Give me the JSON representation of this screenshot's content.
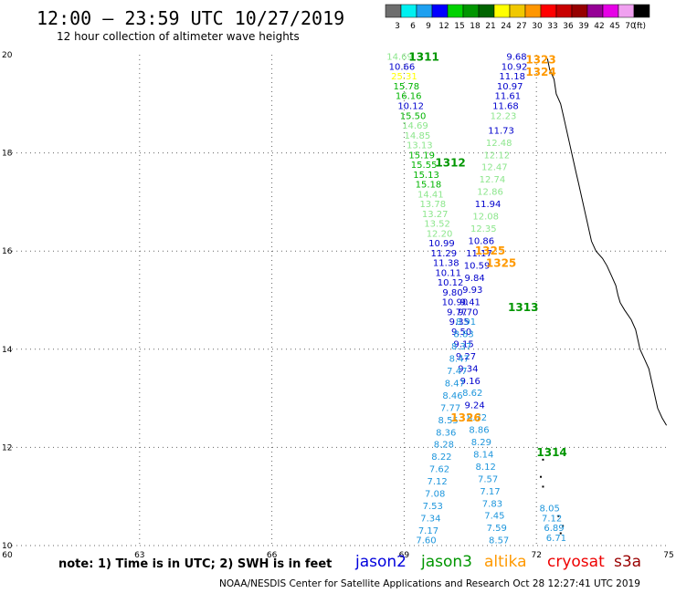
{
  "header": {
    "title": "12:00 – 23:59 UTC 10/27/2019",
    "subtitle": "12 hour collection of altimeter wave heights"
  },
  "legend": {
    "unit_label": "(ft)",
    "bins": [
      {
        "label": "3",
        "color": "#6e6e6e"
      },
      {
        "label": "6",
        "color": "#00f0f0"
      },
      {
        "label": "9",
        "color": "#1ea0f0"
      },
      {
        "label": "12",
        "color": "#0000ff"
      },
      {
        "label": "15",
        "color": "#00d200"
      },
      {
        "label": "18",
        "color": "#009600"
      },
      {
        "label": "21",
        "color": "#006400"
      },
      {
        "label": "24",
        "color": "#ffff00"
      },
      {
        "label": "27",
        "color": "#f0c800"
      },
      {
        "label": "30",
        "color": "#ff9600"
      },
      {
        "label": "33",
        "color": "#ff0000"
      },
      {
        "label": "36",
        "color": "#c80000"
      },
      {
        "label": "39",
        "color": "#960000"
      },
      {
        "label": "42",
        "color": "#960096"
      },
      {
        "label": "45",
        "color": "#e600e6"
      },
      {
        "label": "70",
        "color": "#f0a0f0"
      },
      {
        "label": "",
        "color": "#000000"
      }
    ]
  },
  "footer": {
    "note": "note:  1) Time is in UTC;  2) SWH is in feet",
    "credit": "NOAA/NESDIS Center for Satellite Applications and Research     Oct 28 12:27:41 UTC 2019",
    "satellites": [
      {
        "name": "jason2",
        "color": "#0000dd"
      },
      {
        "name": "jason3",
        "color": "#009600"
      },
      {
        "name": "altika",
        "color": "#ff9900"
      },
      {
        "name": "cryosat",
        "color": "#ee0000"
      },
      {
        "name": "s3a",
        "color": "#990000"
      }
    ]
  },
  "chart_data": {
    "type": "scatter",
    "title": "12:00 – 23:59 UTC 10/27/2019",
    "subtitle": "12 hour collection of altimeter wave heights",
    "xlim": [
      60,
      75
    ],
    "ylim": [
      10,
      20
    ],
    "xticks": [
      60,
      63,
      66,
      69,
      72,
      75
    ],
    "yticks": [
      10,
      12,
      14,
      16,
      18,
      20
    ],
    "grid": true,
    "pass_labels": [
      {
        "text": "1311",
        "x": 69.45,
        "y": 19.95,
        "color": "#009600"
      },
      {
        "text": "1312",
        "x": 70.05,
        "y": 17.8,
        "color": "#009600"
      },
      {
        "text": "1313",
        "x": 71.7,
        "y": 14.85,
        "color": "#009600"
      },
      {
        "text": "1314",
        "x": 72.35,
        "y": 11.9,
        "color": "#009600"
      },
      {
        "text": "1323",
        "x": 72.1,
        "y": 19.9,
        "color": "#ff9900"
      },
      {
        "text": "1324",
        "x": 72.1,
        "y": 19.65,
        "color": "#ff9900"
      },
      {
        "text": "1325",
        "x": 70.95,
        "y": 16.0,
        "color": "#ff9900"
      },
      {
        "text": "1325",
        "x": 71.2,
        "y": 15.75,
        "color": "#ff9900"
      },
      {
        "text": "1326",
        "x": 70.4,
        "y": 12.6,
        "color": "#ff9900"
      }
    ],
    "series": [
      {
        "satellite": "jason3",
        "pass": "1311",
        "points": [
          {
            "x": 68.9,
            "y": 19.95,
            "v": "14.69",
            "color": "#8ce68c"
          },
          {
            "x": 68.95,
            "y": 19.75,
            "v": "10.66",
            "color": "#0000cc"
          },
          {
            "x": 69.0,
            "y": 19.55,
            "v": "25.31",
            "color": "#ffff00"
          },
          {
            "x": 69.05,
            "y": 19.35,
            "v": "15.78",
            "color": "#00b400"
          },
          {
            "x": 69.1,
            "y": 19.15,
            "v": "16.16",
            "color": "#00b400"
          },
          {
            "x": 69.15,
            "y": 18.95,
            "v": "10.12",
            "color": "#0000cc"
          },
          {
            "x": 69.2,
            "y": 18.75,
            "v": "15.50",
            "color": "#00b400"
          },
          {
            "x": 69.25,
            "y": 18.55,
            "v": "14.69",
            "color": "#8ce68c"
          },
          {
            "x": 69.3,
            "y": 18.35,
            "v": "14.85",
            "color": "#8ce68c"
          },
          {
            "x": 69.35,
            "y": 18.15,
            "v": "13.13",
            "color": "#8ce68c"
          },
          {
            "x": 69.4,
            "y": 17.95,
            "v": "15.19",
            "color": "#00b400"
          },
          {
            "x": 69.45,
            "y": 17.75,
            "v": "15.55",
            "color": "#00b400"
          },
          {
            "x": 69.5,
            "y": 17.55,
            "v": "15.13",
            "color": "#00b400"
          },
          {
            "x": 69.55,
            "y": 17.35,
            "v": "15.18",
            "color": "#00b400"
          },
          {
            "x": 69.6,
            "y": 17.15,
            "v": "14.41",
            "color": "#8ce68c"
          },
          {
            "x": 69.65,
            "y": 16.95,
            "v": "13.78",
            "color": "#8ce68c"
          },
          {
            "x": 69.7,
            "y": 16.75,
            "v": "13.27",
            "color": "#8ce68c"
          },
          {
            "x": 69.75,
            "y": 16.55,
            "v": "13.52",
            "color": "#8ce68c"
          },
          {
            "x": 69.8,
            "y": 16.35,
            "v": "12.20",
            "color": "#8ce68c"
          },
          {
            "x": 69.85,
            "y": 16.15,
            "v": "10.99",
            "color": "#0000cc"
          },
          {
            "x": 69.9,
            "y": 15.95,
            "v": "11.29",
            "color": "#0000cc"
          },
          {
            "x": 69.95,
            "y": 15.75,
            "v": "11.38",
            "color": "#0000cc"
          },
          {
            "x": 70.0,
            "y": 15.55,
            "v": "10.11",
            "color": "#0000cc"
          },
          {
            "x": 70.05,
            "y": 15.35,
            "v": "10.12",
            "color": "#0000cc"
          },
          {
            "x": 70.1,
            "y": 15.15,
            "v": "9.80",
            "color": "#0000cc"
          },
          {
            "x": 70.15,
            "y": 14.95,
            "v": "10.90",
            "color": "#0000cc"
          },
          {
            "x": 70.2,
            "y": 14.75,
            "v": "9.77",
            "color": "#0000cc"
          },
          {
            "x": 70.25,
            "y": 14.55,
            "v": "9.35",
            "color": "#0000cc"
          },
          {
            "x": 70.3,
            "y": 14.35,
            "v": "9.50",
            "color": "#0000cc"
          },
          {
            "x": 70.35,
            "y": 14.1,
            "v": "9.15",
            "color": "#0000cc"
          },
          {
            "x": 70.4,
            "y": 13.85,
            "v": "9.27",
            "color": "#0000cc"
          },
          {
            "x": 70.45,
            "y": 13.6,
            "v": "9.34",
            "color": "#0000cc"
          },
          {
            "x": 70.5,
            "y": 13.35,
            "v": "9.16",
            "color": "#0000cc"
          },
          {
            "x": 70.55,
            "y": 13.1,
            "v": "8.62",
            "color": "#1e96dc"
          },
          {
            "x": 70.6,
            "y": 12.85,
            "v": "9.24",
            "color": "#0000cc"
          },
          {
            "x": 70.65,
            "y": 12.6,
            "v": "8.72",
            "color": "#1e96dc"
          },
          {
            "x": 70.7,
            "y": 12.35,
            "v": "8.86",
            "color": "#1e96dc"
          },
          {
            "x": 70.75,
            "y": 12.1,
            "v": "8.29",
            "color": "#1e96dc"
          },
          {
            "x": 70.8,
            "y": 11.85,
            "v": "8.14",
            "color": "#1e96dc"
          },
          {
            "x": 70.85,
            "y": 11.6,
            "v": "8.12",
            "color": "#1e96dc"
          },
          {
            "x": 70.9,
            "y": 11.35,
            "v": "7.57",
            "color": "#1e96dc"
          },
          {
            "x": 70.95,
            "y": 11.1,
            "v": "7.17",
            "color": "#1e96dc"
          },
          {
            "x": 71.0,
            "y": 10.85,
            "v": "7.83",
            "color": "#1e96dc"
          },
          {
            "x": 71.05,
            "y": 10.6,
            "v": "7.45",
            "color": "#1e96dc"
          },
          {
            "x": 71.1,
            "y": 10.35,
            "v": "7.59",
            "color": "#1e96dc"
          },
          {
            "x": 71.15,
            "y": 10.1,
            "v": "8.57",
            "color": "#1e96dc"
          }
        ]
      },
      {
        "satellite": "jason3",
        "pass": "1312",
        "points": [
          {
            "x": 71.55,
            "y": 19.95,
            "v": "9.68",
            "color": "#0000cc"
          },
          {
            "x": 71.5,
            "y": 19.75,
            "v": "10.92",
            "color": "#0000cc"
          },
          {
            "x": 71.45,
            "y": 19.55,
            "v": "11.18",
            "color": "#0000cc"
          },
          {
            "x": 71.4,
            "y": 19.35,
            "v": "10.97",
            "color": "#0000cc"
          },
          {
            "x": 71.35,
            "y": 19.15,
            "v": "11.61",
            "color": "#0000cc"
          },
          {
            "x": 71.3,
            "y": 18.95,
            "v": "11.68",
            "color": "#0000cc"
          },
          {
            "x": 71.25,
            "y": 18.75,
            "v": "12.23",
            "color": "#8ce68c"
          },
          {
            "x": 71.2,
            "y": 18.45,
            "v": "11.73",
            "color": "#0000cc"
          },
          {
            "x": 71.15,
            "y": 18.2,
            "v": "12.48",
            "color": "#8ce68c"
          },
          {
            "x": 71.1,
            "y": 17.95,
            "v": "12.12",
            "color": "#8ce68c"
          },
          {
            "x": 71.05,
            "y": 17.7,
            "v": "12.47",
            "color": "#8ce68c"
          },
          {
            "x": 71.0,
            "y": 17.45,
            "v": "12.74",
            "color": "#8ce68c"
          },
          {
            "x": 70.95,
            "y": 17.2,
            "v": "12.86",
            "color": "#8ce68c"
          },
          {
            "x": 70.9,
            "y": 16.95,
            "v": "11.94",
            "color": "#0000cc"
          },
          {
            "x": 70.85,
            "y": 16.7,
            "v": "12.08",
            "color": "#8ce68c"
          },
          {
            "x": 70.8,
            "y": 16.45,
            "v": "12.35",
            "color": "#8ce68c"
          },
          {
            "x": 70.75,
            "y": 16.2,
            "v": "10.86",
            "color": "#0000cc"
          },
          {
            "x": 70.7,
            "y": 15.95,
            "v": "11.17",
            "color": "#0000cc"
          },
          {
            "x": 70.65,
            "y": 15.7,
            "v": "10.59",
            "color": "#0000cc"
          },
          {
            "x": 70.6,
            "y": 15.45,
            "v": "9.84",
            "color": "#0000cc"
          },
          {
            "x": 70.55,
            "y": 15.2,
            "v": "9.93",
            "color": "#0000cc"
          },
          {
            "x": 70.5,
            "y": 14.95,
            "v": "9.41",
            "color": "#0000cc"
          },
          {
            "x": 70.45,
            "y": 14.75,
            "v": "9.70",
            "color": "#0000cc"
          },
          {
            "x": 70.4,
            "y": 14.55,
            "v": "8.91",
            "color": "#1e96dc"
          },
          {
            "x": 70.35,
            "y": 14.3,
            "v": "8.83",
            "color": "#1e96dc"
          },
          {
            "x": 70.3,
            "y": 14.05,
            "v": "8.37",
            "color": "#1e96dc"
          },
          {
            "x": 70.25,
            "y": 13.8,
            "v": "8.47",
            "color": "#1e96dc"
          },
          {
            "x": 70.2,
            "y": 13.55,
            "v": "7.47",
            "color": "#1e96dc"
          },
          {
            "x": 70.15,
            "y": 13.3,
            "v": "8.47",
            "color": "#1e96dc"
          },
          {
            "x": 70.1,
            "y": 13.05,
            "v": "8.46",
            "color": "#1e96dc"
          },
          {
            "x": 70.05,
            "y": 12.8,
            "v": "7.77",
            "color": "#1e96dc"
          },
          {
            "x": 70.0,
            "y": 12.55,
            "v": "8.55",
            "color": "#1e96dc"
          },
          {
            "x": 69.95,
            "y": 12.3,
            "v": "8.36",
            "color": "#1e96dc"
          },
          {
            "x": 69.9,
            "y": 12.05,
            "v": "8.28",
            "color": "#1e96dc"
          },
          {
            "x": 69.85,
            "y": 11.8,
            "v": "8.22",
            "color": "#1e96dc"
          },
          {
            "x": 69.8,
            "y": 11.55,
            "v": "7.62",
            "color": "#1e96dc"
          },
          {
            "x": 69.75,
            "y": 11.3,
            "v": "7.12",
            "color": "#1e96dc"
          },
          {
            "x": 69.7,
            "y": 11.05,
            "v": "7.08",
            "color": "#1e96dc"
          },
          {
            "x": 69.65,
            "y": 10.8,
            "v": "7.53",
            "color": "#1e96dc"
          },
          {
            "x": 69.6,
            "y": 10.55,
            "v": "7.34",
            "color": "#1e96dc"
          },
          {
            "x": 69.55,
            "y": 10.3,
            "v": "7.17",
            "color": "#1e96dc"
          },
          {
            "x": 69.5,
            "y": 10.1,
            "v": "7.60",
            "color": "#1e96dc"
          }
        ]
      },
      {
        "satellite": "jason3",
        "pass": "1314",
        "points": [
          {
            "x": 72.3,
            "y": 10.75,
            "v": "8.05",
            "color": "#1e96dc"
          },
          {
            "x": 72.35,
            "y": 10.55,
            "v": "7.12",
            "color": "#1e96dc"
          },
          {
            "x": 72.4,
            "y": 10.35,
            "v": "6.89",
            "color": "#1e96dc"
          },
          {
            "x": 72.45,
            "y": 10.15,
            "v": "6.71",
            "color": "#1e96dc"
          }
        ]
      }
    ]
  }
}
